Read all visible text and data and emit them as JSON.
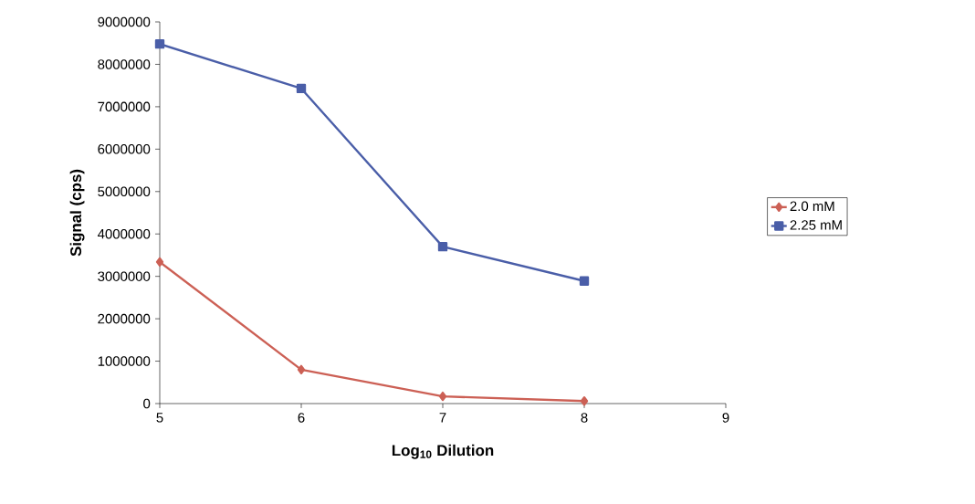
{
  "chart_data": {
    "type": "line",
    "xlabel": "Log$_{10}$ Dilution",
    "ylabel": "Signal (cps)",
    "x": [
      5,
      6,
      7,
      8
    ],
    "series": [
      {
        "name": "2.0 mM",
        "color": "#cc6055",
        "marker": "diamond",
        "values": [
          3340000,
          800000,
          170000,
          60000
        ]
      },
      {
        "name": "2.25 mM",
        "color": "#4a5ea8",
        "marker": "square",
        "values": [
          8480000,
          7430000,
          3700000,
          2890000
        ]
      }
    ],
    "xlim": [
      5,
      9
    ],
    "xticks": [
      5,
      6,
      7,
      8,
      9
    ],
    "ylim": [
      0,
      9000000
    ],
    "yticks": [
      0,
      1000000,
      2000000,
      3000000,
      4000000,
      5000000,
      6000000,
      7000000,
      8000000,
      9000000
    ],
    "grid": false,
    "legend": "right",
    "line_style": "solid"
  }
}
